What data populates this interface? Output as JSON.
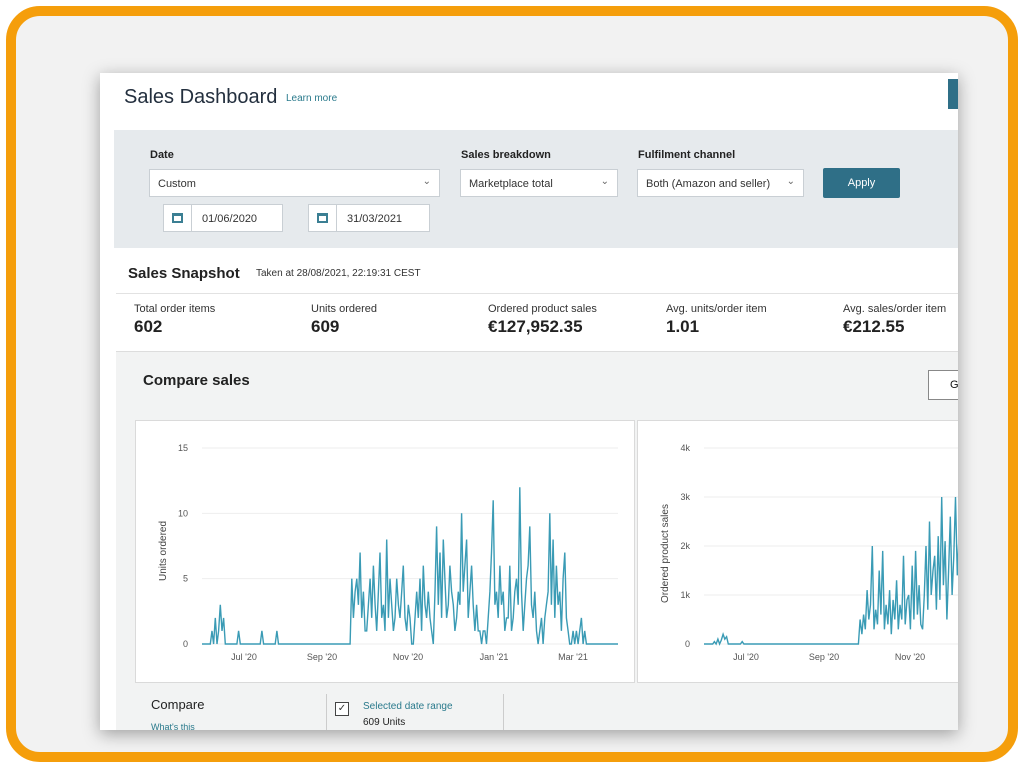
{
  "header": {
    "title": "Sales Dashboard",
    "learn_more": "Learn more"
  },
  "filters": {
    "date_label": "Date",
    "date_value": "Custom",
    "start_date": "01/06/2020",
    "end_date": "31/03/2021",
    "breakdown_label": "Sales breakdown",
    "breakdown_value": "Marketplace total",
    "channel_label": "Fulfilment channel",
    "channel_value": "Both (Amazon and seller)",
    "apply_label": "Apply"
  },
  "snapshot": {
    "title": "Sales Snapshot",
    "taken": "Taken at 28/08/2021, 22:19:31 CEST",
    "metrics": [
      {
        "label": "Total order items",
        "value": "602"
      },
      {
        "label": "Units ordered",
        "value": "609"
      },
      {
        "label": "Ordered product sales",
        "value": "€127,952.35"
      },
      {
        "label": "Avg. units/order item",
        "value": "1.01"
      },
      {
        "label": "Avg. sales/order item",
        "value": "€212.55"
      }
    ]
  },
  "compare": {
    "title": "Compare sales",
    "button_label": "G",
    "sub_title": "Compare",
    "whats_this": "What's this",
    "legend_label": "Selected date range",
    "legend_value": "609 Units"
  },
  "colors": {
    "accent": "#2f6f87",
    "line": "#3a9bb5",
    "frame": "#f59e0b"
  },
  "icons": [
    "calendar-icon",
    "chevron-down-icon",
    "checkbox-icon"
  ],
  "chart_data": [
    {
      "type": "line",
      "ylabel": "Units ordered",
      "ylim": [
        0,
        15
      ],
      "yticks": [
        "15",
        "10",
        "5",
        "0"
      ],
      "xticks": [
        "Jul '20",
        "Sep '20",
        "Nov '20",
        "Jan '21",
        "Mar '21"
      ],
      "series": [
        {
          "values": [
            0,
            0,
            0,
            0,
            0,
            0,
            1,
            0,
            2,
            0,
            1,
            3,
            1,
            2,
            0,
            0,
            0,
            0,
            0,
            0,
            0,
            0,
            1,
            0,
            0,
            0,
            0,
            0,
            0,
            0,
            0,
            0,
            0,
            0,
            0,
            0,
            1,
            0,
            0,
            0,
            0,
            0,
            0,
            0,
            0,
            1,
            0,
            0,
            0,
            0,
            0,
            0,
            0,
            0,
            0,
            0,
            0,
            0,
            0,
            0,
            0,
            0,
            0,
            0,
            0,
            0,
            0,
            0,
            0,
            0,
            0,
            0,
            0,
            0,
            0,
            0,
            0,
            0,
            0,
            0,
            0,
            0,
            0,
            0,
            0,
            0,
            0,
            0,
            0,
            0,
            5,
            2,
            4,
            5,
            3,
            7,
            2,
            4,
            1,
            1,
            3,
            5,
            2,
            6,
            3,
            1,
            4,
            7,
            2,
            3,
            1,
            8,
            2,
            5,
            3,
            1,
            2,
            5,
            3,
            2,
            4,
            6,
            2,
            1,
            3,
            2,
            0,
            0,
            2,
            4,
            2,
            5,
            1,
            6,
            3,
            2,
            4,
            2,
            1,
            0,
            4,
            9,
            3,
            7,
            2,
            8,
            5,
            2,
            3,
            6,
            4,
            3,
            1,
            2,
            4,
            3,
            10,
            4,
            6,
            8,
            2,
            4,
            6,
            3,
            1,
            3,
            1,
            1,
            0,
            1,
            1,
            0,
            2,
            4,
            7,
            11,
            3,
            4,
            2,
            6,
            3,
            4,
            1,
            2,
            2,
            6,
            1,
            2,
            4,
            5,
            3,
            12,
            4,
            1,
            3,
            5,
            6,
            9,
            3,
            2,
            4,
            1,
            0,
            1,
            2,
            0,
            2,
            3,
            4,
            10,
            3,
            8,
            2,
            6,
            3,
            4,
            1,
            5,
            7,
            2,
            1,
            0,
            0,
            1,
            0,
            1,
            0,
            1,
            2,
            0,
            1,
            0,
            0,
            0,
            0,
            0,
            0,
            0,
            0,
            0,
            0,
            0,
            0,
            0,
            0,
            0,
            0,
            0,
            0,
            0,
            0
          ]
        }
      ]
    },
    {
      "type": "line",
      "ylabel": "Ordered product sales",
      "ylim": [
        0,
        4000
      ],
      "yticks": [
        "4k",
        "3k",
        "2k",
        "1k",
        "0"
      ],
      "xticks": [
        "Jul '20",
        "Sep '20",
        "Nov '20"
      ],
      "series": [
        {
          "values": [
            0,
            0,
            0,
            0,
            0,
            0,
            50,
            0,
            100,
            0,
            80,
            200,
            100,
            150,
            0,
            0,
            0,
            0,
            0,
            0,
            0,
            0,
            50,
            0,
            0,
            0,
            0,
            0,
            0,
            0,
            0,
            0,
            0,
            0,
            0,
            0,
            0,
            0,
            0,
            0,
            0,
            0,
            0,
            0,
            0,
            0,
            0,
            0,
            0,
            0,
            0,
            0,
            0,
            0,
            0,
            0,
            0,
            0,
            0,
            0,
            0,
            0,
            0,
            0,
            0,
            0,
            0,
            0,
            0,
            0,
            0,
            0,
            0,
            0,
            0,
            0,
            0,
            0,
            0,
            0,
            0,
            0,
            0,
            0,
            0,
            0,
            0,
            0,
            0,
            0,
            500,
            200,
            600,
            300,
            1100,
            500,
            800,
            2000,
            300,
            700,
            400,
            1500,
            600,
            1900,
            300,
            800,
            400,
            1100,
            200,
            900,
            500,
            1300,
            300,
            800,
            500,
            1800,
            400,
            900,
            1000,
            300,
            1600,
            500,
            1900,
            600,
            1200,
            400,
            300,
            1000,
            2000,
            700,
            2500,
            1000,
            1500,
            1800,
            700,
            2200,
            900,
            3000,
            1200,
            2100,
            500,
            1500,
            2600,
            1000,
            1800,
            3000,
            1400,
            2200
          ]
        }
      ]
    }
  ]
}
